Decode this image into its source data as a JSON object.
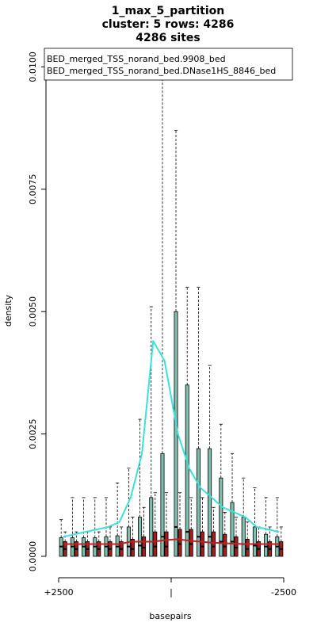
{
  "chart_data": {
    "type": "bar",
    "title_lines": [
      "1_max_5_partition",
      "cluster: 5 rows: 4286",
      "4286 sites"
    ],
    "xlabel": "basepairs",
    "ylabel": "density",
    "x_tick_labels": [
      "+2500",
      "|",
      "-2500"
    ],
    "x_range": [
      2500,
      -2500
    ],
    "ylim": [
      0,
      0.0102
    ],
    "y_ticks": [
      0.0,
      0.0025,
      0.005,
      0.0075,
      0.01
    ],
    "y_tick_labels": [
      "0.0000",
      "0.0025",
      "0.0050",
      "0.0075",
      "0.0100"
    ],
    "bin_centers": [
      2400,
      2150,
      1900,
      1650,
      1400,
      1150,
      900,
      650,
      400,
      150,
      -150,
      -400,
      -650,
      -900,
      -1150,
      -1400,
      -1650,
      -1900,
      -2150,
      -2400
    ],
    "legend": [
      "BED_merged_TSS_norand_bed.9908_bed",
      "BED_merged_TSS_norand_bed.DNase1HS_8846_bed"
    ],
    "series": [
      {
        "name": "BED_merged_TSS_norand_bed.9908_bed",
        "color": "#000000",
        "box_fill": "#7fbfb0",
        "box_q3": [
          0.00038,
          0.00038,
          0.00038,
          0.00038,
          0.0004,
          0.00042,
          0.0006,
          0.0008,
          0.0012,
          0.0021,
          0.005,
          0.0035,
          0.0022,
          0.0022,
          0.0016,
          0.0011,
          0.0008,
          0.0006,
          0.00045,
          0.0004
        ],
        "median": [
          0.0002,
          0.0002,
          0.0002,
          0.0002,
          0.0002,
          0.0002,
          0.0002,
          0.00022,
          0.0003,
          0.0004,
          0.0006,
          0.0005,
          0.0004,
          0.0004,
          0.0003,
          0.0003,
          0.00025,
          0.00022,
          0.0002,
          0.0002
        ],
        "whisker_max": [
          0.00075,
          0.0012,
          0.0012,
          0.0012,
          0.0012,
          0.0015,
          0.0018,
          0.0028,
          0.0051,
          0.0102,
          0.0087,
          0.0055,
          0.0055,
          0.0039,
          0.0027,
          0.0021,
          0.0016,
          0.0014,
          0.0012,
          0.0012
        ]
      },
      {
        "name": "BED_merged_TSS_norand_bed.DNase1HS_8846_bed",
        "color": "#000000",
        "box_fill": "#a02020",
        "box_q3": [
          0.0003,
          0.0003,
          0.0003,
          0.0003,
          0.0003,
          0.0003,
          0.00035,
          0.0004,
          0.0005,
          0.0005,
          0.00055,
          0.00055,
          0.0005,
          0.0005,
          0.00045,
          0.0004,
          0.00035,
          0.0003,
          0.0003,
          0.0003
        ],
        "median": [
          0.00015,
          0.00015,
          0.00015,
          0.00015,
          0.00015,
          0.00015,
          0.00015,
          0.00018,
          0.0002,
          0.0002,
          0.00025,
          0.00025,
          0.0002,
          0.0002,
          0.0002,
          0.00018,
          0.00015,
          0.00015,
          0.00015,
          0.00015
        ],
        "whisker_max": [
          0.0005,
          0.0005,
          0.0005,
          0.0005,
          0.0006,
          0.0006,
          0.0008,
          0.001,
          0.0013,
          0.0013,
          0.0013,
          0.0012,
          0.0012,
          0.001,
          0.0009,
          0.0008,
          0.0007,
          0.0006,
          0.0006,
          0.0006
        ]
      }
    ],
    "lines": [
      {
        "name": "cyan-mean",
        "color": "#3be0d8",
        "values": [
          0.0004,
          0.00045,
          0.0005,
          0.00055,
          0.0006,
          0.0007,
          0.0012,
          0.0021,
          0.0044,
          0.004,
          0.0025,
          0.0018,
          0.0014,
          0.0012,
          0.001,
          0.0009,
          0.0008,
          0.0006,
          0.00055,
          0.0005
        ]
      },
      {
        "name": "red-mean",
        "color": "#c02020",
        "values": [
          0.00025,
          0.00025,
          0.00025,
          0.00025,
          0.00025,
          0.00025,
          0.0003,
          0.0003,
          0.0003,
          0.00033,
          0.00035,
          0.00032,
          0.0003,
          0.00028,
          0.00027,
          0.00026,
          0.00025,
          0.00025,
          0.00025,
          0.00025
        ]
      }
    ]
  }
}
